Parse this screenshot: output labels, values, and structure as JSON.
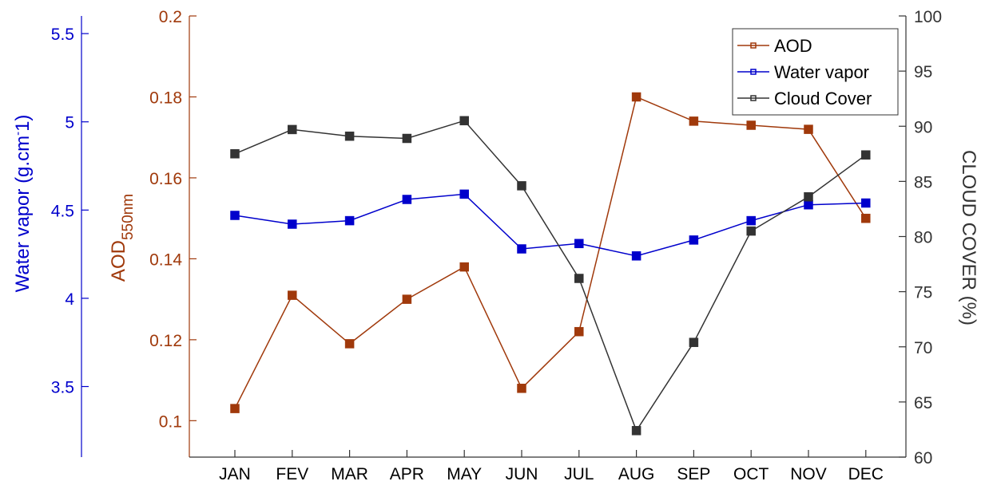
{
  "chart_data": {
    "type": "line",
    "categories": [
      "JAN",
      "FEV",
      "MAR",
      "APR",
      "MAY",
      "JUN",
      "JUL",
      "AUG",
      "SEP",
      "OCT",
      "NOV",
      "DEC"
    ],
    "series": [
      {
        "name": "AOD",
        "axis": "aod",
        "color": "#a0390b",
        "values": [
          0.103,
          0.131,
          0.119,
          0.13,
          0.138,
          0.108,
          0.122,
          0.18,
          0.174,
          0.173,
          0.172,
          0.15
        ]
      },
      {
        "name": "Water vapor",
        "axis": "water_vapor",
        "color": "#0000cc",
        "values": [
          4.47,
          4.42,
          4.44,
          4.56,
          4.59,
          4.28,
          4.31,
          4.24,
          4.33,
          4.44,
          4.53,
          4.54
        ]
      },
      {
        "name": "Cloud Cover",
        "axis": "cloud",
        "color": "#333333",
        "values": [
          87.5,
          89.7,
          89.1,
          88.9,
          90.5,
          84.6,
          76.2,
          62.4,
          70.4,
          80.5,
          83.6,
          87.4
        ]
      }
    ],
    "axes": {
      "water_vapor": {
        "label_main": "Water vapor (g.cm",
        "label_sup": "-",
        "label_end": "1)",
        "color": "#0000cc",
        "ylim": [
          3.1,
          5.6
        ],
        "ticks": [
          "3.5",
          "4",
          "4.5",
          "5",
          "5.5"
        ]
      },
      "aod": {
        "label_main": "AOD",
        "label_sub": "550nm",
        "color": "#a0390b",
        "ylim": [
          0.091,
          0.2
        ],
        "ticks": [
          "0.1",
          "0.12",
          "0.14",
          "0.16",
          "0.18",
          "0.2"
        ]
      },
      "cloud": {
        "label": "CLOUD COVER (%)",
        "color": "#333333",
        "ylim": [
          60,
          100
        ],
        "ticks": [
          "60",
          "65",
          "70",
          "75",
          "80",
          "85",
          "90",
          "95",
          "100"
        ]
      }
    },
    "legend": {
      "position": "top-right"
    },
    "grid": false
  }
}
